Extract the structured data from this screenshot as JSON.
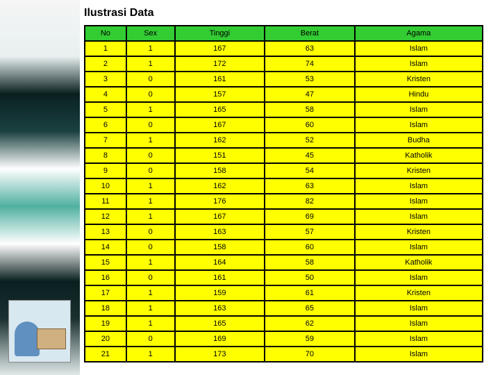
{
  "title": "Ilustrasi Data",
  "table": {
    "header_bg": "#33cc33",
    "row_bg": "#ffff00",
    "border_color": "#000000",
    "columns": [
      "No",
      "Sex",
      "Tinggi",
      "Berat",
      "Agama"
    ],
    "rows": [
      [
        "1",
        "1",
        "167",
        "63",
        "Islam"
      ],
      [
        "2",
        "1",
        "172",
        "74",
        "Islam"
      ],
      [
        "3",
        "0",
        "161",
        "53",
        "Kristen"
      ],
      [
        "4",
        "0",
        "157",
        "47",
        "Hindu"
      ],
      [
        "5",
        "1",
        "165",
        "58",
        "Islam"
      ],
      [
        "6",
        "0",
        "167",
        "60",
        "Islam"
      ],
      [
        "7",
        "1",
        "162",
        "52",
        "Budha"
      ],
      [
        "8",
        "0",
        "151",
        "45",
        "Katholik"
      ],
      [
        "9",
        "0",
        "158",
        "54",
        "Kristen"
      ],
      [
        "10",
        "1",
        "162",
        "63",
        "Islam"
      ],
      [
        "11",
        "1",
        "176",
        "82",
        "Islam"
      ],
      [
        "12",
        "1",
        "167",
        "69",
        "Islam"
      ],
      [
        "13",
        "0",
        "163",
        "57",
        "Kristen"
      ],
      [
        "14",
        "0",
        "158",
        "60",
        "Islam"
      ],
      [
        "15",
        "1",
        "164",
        "58",
        "Katholik"
      ],
      [
        "16",
        "0",
        "161",
        "50",
        "Islam"
      ],
      [
        "17",
        "1",
        "159",
        "61",
        "Kristen"
      ],
      [
        "18",
        "1",
        "163",
        "65",
        "Islam"
      ],
      [
        "19",
        "1",
        "165",
        "62",
        "Islam"
      ],
      [
        "20",
        "0",
        "169",
        "59",
        "Islam"
      ],
      [
        "21",
        "1",
        "173",
        "70",
        "Islam"
      ]
    ]
  }
}
